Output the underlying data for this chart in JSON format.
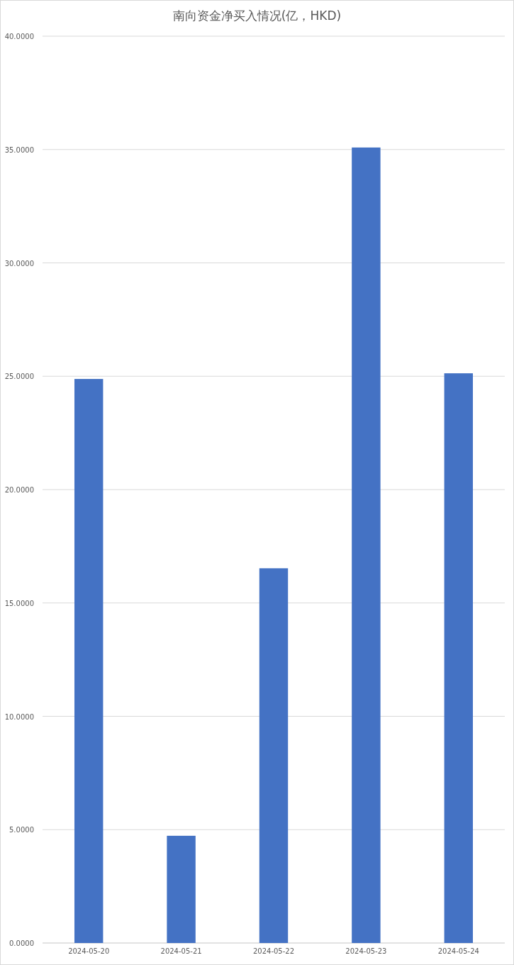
{
  "chart_data": {
    "type": "bar",
    "title": "南向资金净买入情况(亿，HKD)",
    "categories": [
      "2024-05-20",
      "2024-05-21",
      "2024-05-22",
      "2024-05-23",
      "2024-05-24"
    ],
    "values": [
      24.88,
      4.73,
      16.53,
      35.09,
      25.13
    ],
    "color": "#4472c4",
    "ylim": [
      0,
      40
    ],
    "yticks": [
      {
        "value": 0,
        "label": "0.0000"
      },
      {
        "value": 5,
        "label": "5.0000"
      },
      {
        "value": 10,
        "label": "10.0000"
      },
      {
        "value": 15,
        "label": "15.0000"
      },
      {
        "value": 20,
        "label": "20.0000"
      },
      {
        "value": 25,
        "label": "25.0000"
      },
      {
        "value": 30,
        "label": "30.0000"
      },
      {
        "value": 35,
        "label": "35.0000"
      },
      {
        "value": 40,
        "label": "40.0000"
      }
    ],
    "grid": "y"
  }
}
